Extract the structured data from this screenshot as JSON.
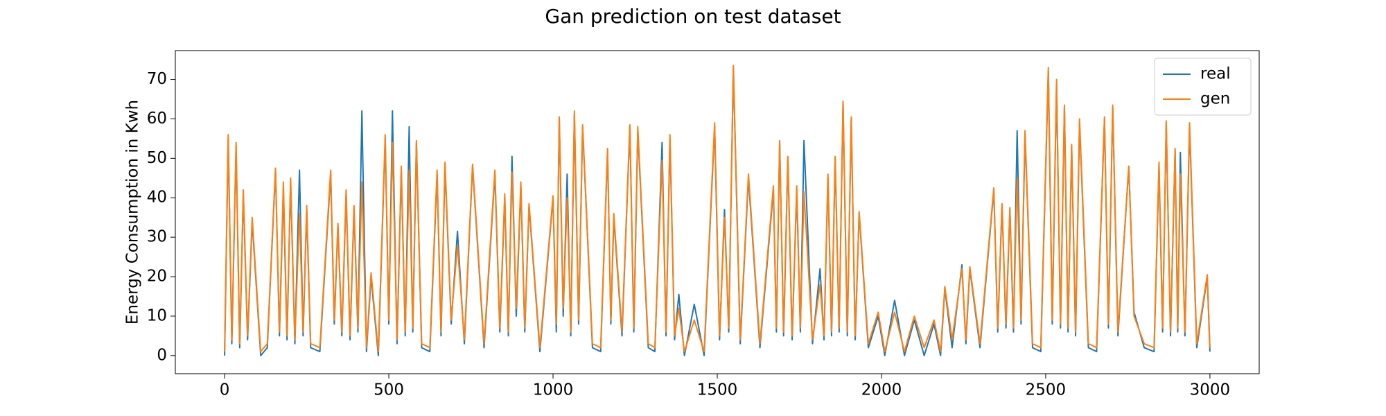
{
  "chart_data": {
    "type": "line",
    "title": "Gan prediction on test dataset",
    "y_label": "Energy Consumption in Kwh",
    "x": [
      0,
      11,
      22,
      35,
      46,
      57,
      70,
      84,
      110,
      130,
      155,
      167,
      179,
      190,
      201,
      214,
      228,
      239,
      250,
      262,
      290,
      323,
      334,
      345,
      357,
      370,
      382,
      394,
      406,
      418,
      432,
      446,
      468,
      489,
      500,
      511,
      525,
      538,
      550,
      562,
      573,
      584,
      600,
      625,
      647,
      659,
      671,
      690,
      709,
      730,
      755,
      790,
      823,
      838,
      853,
      864,
      875,
      888,
      902,
      914,
      927,
      960,
      1000,
      1010,
      1019,
      1031,
      1043,
      1054,
      1065,
      1078,
      1090,
      1120,
      1145,
      1166,
      1176,
      1185,
      1210,
      1234,
      1246,
      1258,
      1290,
      1310,
      1332,
      1344,
      1356,
      1370,
      1383,
      1400,
      1430,
      1460,
      1492,
      1507,
      1522,
      1535,
      1549,
      1570,
      1595,
      1630,
      1671,
      1680,
      1690,
      1702,
      1715,
      1728,
      1742,
      1753,
      1764,
      1790,
      1813,
      1825,
      1837,
      1848,
      1859,
      1871,
      1883,
      1896,
      1908,
      1920,
      1932,
      1960,
      1990,
      2010,
      2040,
      2070,
      2100,
      2130,
      2160,
      2180,
      2193,
      2215,
      2245,
      2257,
      2269,
      2300,
      2342,
      2354,
      2367,
      2379,
      2391,
      2402,
      2413,
      2425,
      2437,
      2460,
      2485,
      2508,
      2520,
      2533,
      2545,
      2557,
      2568,
      2579,
      2591,
      2603,
      2630,
      2655,
      2679,
      2691,
      2704,
      2720,
      2753,
      2769,
      2800,
      2830,
      2845,
      2856,
      2867,
      2880,
      2894,
      2902,
      2910,
      2924,
      2938,
      2960,
      2992,
      3000
    ],
    "series": [
      {
        "name": "real",
        "color": "#1f77b4",
        "values": [
          0,
          55,
          3,
          53,
          2,
          41,
          4,
          34,
          0,
          2,
          47,
          5,
          42,
          4,
          44,
          3,
          47,
          5,
          37,
          2,
          1,
          46,
          8,
          33,
          5,
          41,
          4,
          37,
          6,
          62,
          1,
          20,
          0,
          55,
          8,
          62,
          3,
          47,
          5,
          58,
          6,
          54,
          2,
          1,
          46,
          5,
          48,
          8,
          31.5,
          3,
          48,
          2,
          46,
          6,
          40,
          5,
          50.5,
          10,
          43,
          6,
          38,
          1,
          40,
          6,
          60,
          10,
          46,
          5,
          61,
          8,
          58,
          2,
          1,
          52,
          8,
          35,
          5,
          58,
          6,
          57,
          2,
          1,
          54,
          5,
          55,
          4,
          15.5,
          0,
          13,
          0,
          58,
          4,
          37,
          6,
          73,
          3,
          45,
          2,
          42,
          6,
          54,
          5,
          50,
          4,
          42,
          6,
          54.5,
          3,
          22,
          4,
          45,
          5,
          50,
          6,
          64,
          5,
          60,
          4,
          36,
          2,
          10,
          0,
          14,
          0,
          9,
          0,
          8,
          0,
          17,
          2,
          23,
          3,
          22,
          2,
          42,
          6,
          38,
          7,
          37,
          6,
          57,
          8,
          56,
          2,
          1,
          72,
          8,
          69,
          7,
          63,
          6,
          53,
          5,
          59,
          2,
          1,
          60,
          7,
          63,
          5,
          48,
          11,
          2,
          1,
          48,
          6,
          59,
          5,
          52,
          6,
          51.5,
          5,
          58,
          2,
          20,
          1
        ]
      },
      {
        "name": "gen",
        "color": "#ff7f0e",
        "values": [
          1,
          56,
          4,
          54,
          3,
          42,
          5,
          35,
          1,
          3,
          47.5,
          6,
          44,
          5,
          45,
          4,
          36,
          6,
          38,
          3,
          2,
          47,
          9,
          33.5,
          6,
          42,
          5,
          38,
          7,
          44,
          2,
          21,
          1,
          56,
          9,
          54,
          4,
          48,
          6,
          47,
          7,
          54.5,
          3,
          2,
          47,
          6,
          49,
          9,
          28,
          4,
          48.5,
          3,
          47,
          7,
          41,
          6,
          46.5,
          12,
          44,
          7,
          38.5,
          2,
          40.5,
          8,
          60.5,
          12,
          40,
          6,
          62,
          9,
          58.5,
          3,
          2,
          52.5,
          9,
          36,
          6,
          58.5,
          7,
          58,
          3,
          2,
          49.5,
          6,
          56,
          5,
          12,
          1,
          9,
          1,
          59,
          5,
          35,
          7,
          73.5,
          4,
          46,
          3,
          43,
          7,
          54.5,
          6,
          50.5,
          5,
          43,
          7,
          41.5,
          4,
          18,
          5,
          46,
          6,
          50.5,
          7,
          64.5,
          6,
          60.5,
          5,
          36.5,
          3,
          11,
          1,
          11,
          1,
          10,
          2,
          9,
          1,
          17.5,
          4,
          22,
          4,
          22.5,
          3,
          42.5,
          7,
          38.5,
          8,
          37.5,
          7,
          45,
          9,
          57,
          3,
          2,
          73,
          9,
          70,
          8,
          63.5,
          7,
          53.5,
          6,
          60,
          3,
          2,
          60.5,
          8,
          63.5,
          6,
          48,
          10,
          3,
          2,
          49,
          7,
          59.5,
          6,
          52.5,
          7,
          46,
          6,
          59,
          3,
          20.5,
          2
        ]
      }
    ],
    "xlim": [
      -150,
      3150
    ],
    "xticks": [
      0,
      500,
      1000,
      1500,
      2000,
      2500,
      3000
    ],
    "ylim": [
      -4.6,
      77.3
    ],
    "yticks": [
      0,
      10,
      20,
      30,
      40,
      50,
      60,
      70
    ],
    "grid": false,
    "legend": "upper right"
  }
}
